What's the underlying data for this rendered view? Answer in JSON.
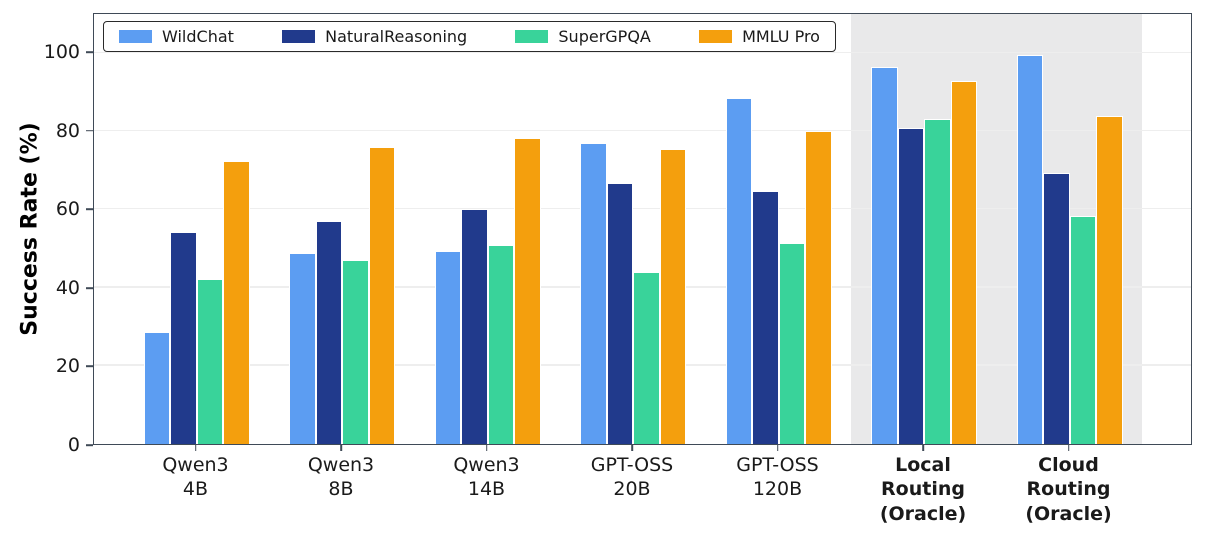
{
  "chart_data": {
    "type": "bar",
    "title": "",
    "xlabel": "",
    "ylabel": "Success Rate (%)",
    "ylim": [
      0,
      110
    ],
    "yticks": [
      0,
      20,
      40,
      60,
      80,
      100
    ],
    "grid": true,
    "legend_position": "top-left-inside-horizontal",
    "categories": [
      "Qwen3 4B",
      "Qwen3 8B",
      "Qwen3 14B",
      "GPT-OSS 20B",
      "GPT-OSS 120B",
      "Local Routing (Oracle)",
      "Cloud Routing (Oracle)"
    ],
    "category_lines": [
      [
        "Qwen3",
        "4B"
      ],
      [
        "Qwen3",
        "8B"
      ],
      [
        "Qwen3",
        "14B"
      ],
      [
        "GPT-OSS",
        "20B"
      ],
      [
        "GPT-OSS",
        "120B"
      ],
      [
        "Local",
        "Routing",
        "(Oracle)"
      ],
      [
        "Cloud",
        "Routing",
        "(Oracle)"
      ]
    ],
    "category_bold": [
      false,
      false,
      false,
      false,
      false,
      true,
      true
    ],
    "series": [
      {
        "name": "WildChat",
        "color": "#5C9DF2",
        "values": [
          28.7,
          48.9,
          49.5,
          77.0,
          88.5,
          96.4,
          99.5
        ]
      },
      {
        "name": "NaturalReasoning",
        "color": "#213A8C",
        "values": [
          54.2,
          57.0,
          60.0,
          66.8,
          64.8,
          80.8,
          69.4
        ]
      },
      {
        "name": "SuperGPQA",
        "color": "#39D39A",
        "values": [
          42.3,
          47.0,
          51.0,
          44.0,
          51.4,
          83.2,
          58.4
        ]
      },
      {
        "name": "MMLU Pro",
        "color": "#F49F0D",
        "values": [
          72.4,
          76.0,
          78.4,
          75.5,
          80.1,
          92.9,
          83.8
        ]
      }
    ],
    "highlight_band": {
      "from_category": "Local Routing (Oracle)",
      "to_category": "Cloud Routing (Oracle)",
      "color": "#E9E9EA"
    }
  }
}
